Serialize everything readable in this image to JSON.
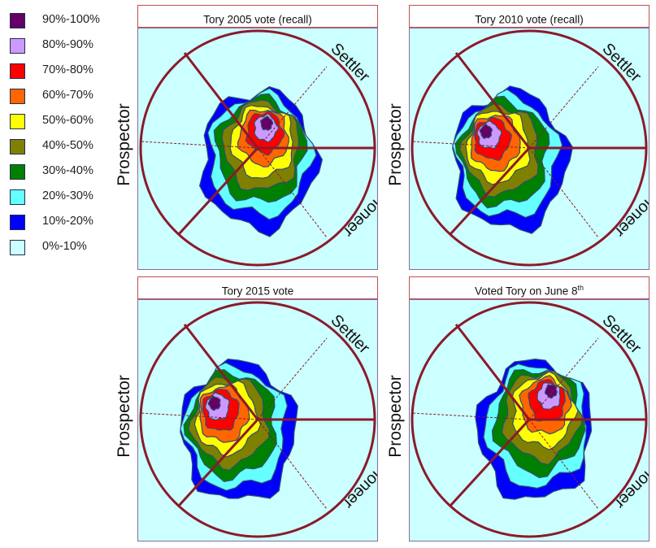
{
  "legend": [
    {
      "label": "90%-100%",
      "color": "#660066"
    },
    {
      "label": "80%-90%",
      "color": "#cc99ff"
    },
    {
      "label": "70%-80%",
      "color": "#ff0000"
    },
    {
      "label": "60%-70%",
      "color": "#ff6600"
    },
    {
      "label": "50%-60%",
      "color": "#ffff00"
    },
    {
      "label": "40%-50%",
      "color": "#808000"
    },
    {
      "label": "30%-40%",
      "color": "#008000"
    },
    {
      "label": "20%-30%",
      "color": "#66ffff"
    },
    {
      "label": "10%-20%",
      "color": "#0000ff"
    },
    {
      "label": "0%-10%",
      "color": "#ccffff"
    }
  ],
  "labels": {
    "prospector": "Prospector",
    "settler": "Settler",
    "pioneer": "Pioneer"
  },
  "chart_data": [
    {
      "type": "heatmap",
      "title": "Tory 2005 vote (recall)",
      "title_sup": "",
      "shift": "settler-left"
    },
    {
      "type": "heatmap",
      "title": "Tory 2010 vote (recall)",
      "title_sup": "",
      "shift": "prospector"
    },
    {
      "type": "heatmap",
      "title": "Tory 2015 vote",
      "title_sup": "",
      "shift": "prospector"
    },
    {
      "type": "heatmap",
      "title": "Voted Tory on June 8",
      "title_sup": "th",
      "shift": "settler"
    }
  ],
  "colors": {
    "circle": "#8b1a2b",
    "plot_bg": "#ccffff",
    "title_border": "#c0504d"
  }
}
